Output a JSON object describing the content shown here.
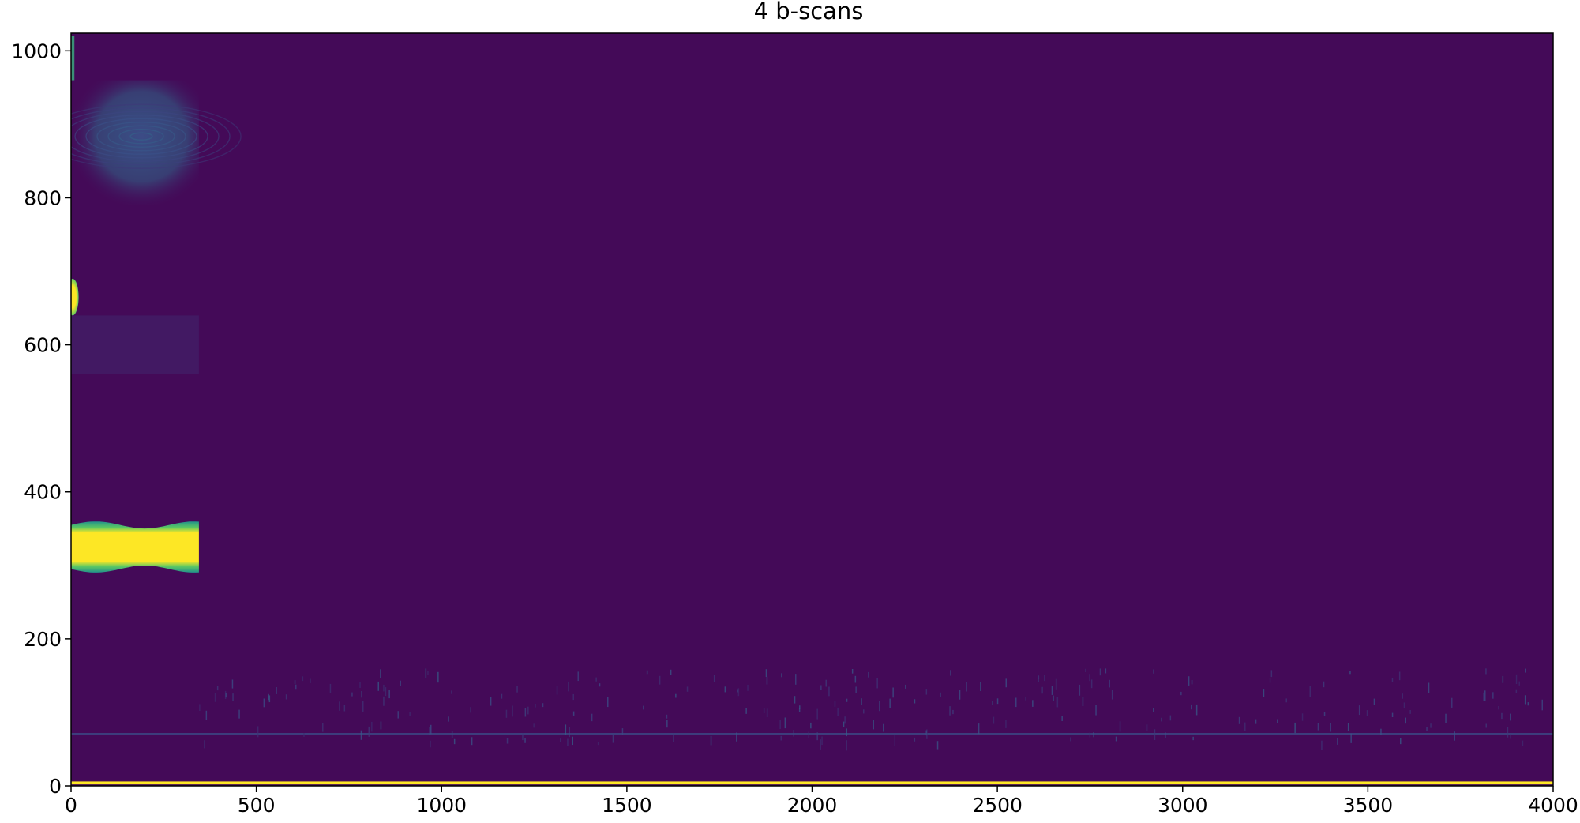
{
  "chart_data": {
    "type": "heatmap",
    "title": "4 b-scans",
    "xlabel": "",
    "ylabel": "",
    "xlim": [
      0,
      4000
    ],
    "ylim": [
      0,
      1024
    ],
    "x_ticks": [
      0,
      500,
      1000,
      1500,
      2000,
      2500,
      3000,
      3500,
      4000
    ],
    "y_ticks": [
      0,
      200,
      400,
      600,
      800,
      1000
    ],
    "x_tick_labels": [
      "0",
      "500",
      "1000",
      "1500",
      "2000",
      "2500",
      "3000",
      "3500",
      "4000"
    ],
    "y_tick_labels": [
      "0",
      "200",
      "400",
      "600",
      "800",
      "1000"
    ],
    "colormap": "viridis",
    "colors": {
      "background": "#440a58",
      "low": "#440154",
      "mid_low": "#3b528b",
      "mid": "#21918c",
      "mid_high": "#5ec962",
      "high": "#fde725"
    },
    "features": [
      {
        "name": "bright-band",
        "x": [
          0,
          345
        ],
        "y": [
          295,
          355
        ],
        "level": 1.0
      },
      {
        "name": "edge-spot",
        "x": [
          0,
          18
        ],
        "y": [
          640,
          690
        ],
        "level": 1.0
      },
      {
        "name": "edge-streak-top",
        "x": [
          0,
          18
        ],
        "y": [
          960,
          1020
        ],
        "level": 0.6
      },
      {
        "name": "ring-pattern",
        "x": [
          0,
          345
        ],
        "y": [
          790,
          960
        ],
        "level": 0.3
      },
      {
        "name": "faint-region",
        "x": [
          0,
          345
        ],
        "y": [
          560,
          640
        ],
        "level": 0.12
      },
      {
        "name": "surface-line",
        "x": [
          0,
          4000
        ],
        "y": [
          2,
          6
        ],
        "level": 1.0
      },
      {
        "name": "horizontal-line",
        "x": [
          0,
          4000
        ],
        "y": [
          70,
          72
        ],
        "level": 0.2
      },
      {
        "name": "scatter-noise",
        "x": [
          345,
          4000
        ],
        "y": [
          60,
          160
        ],
        "level": 0.15
      }
    ],
    "grid": false,
    "legend": "none"
  }
}
